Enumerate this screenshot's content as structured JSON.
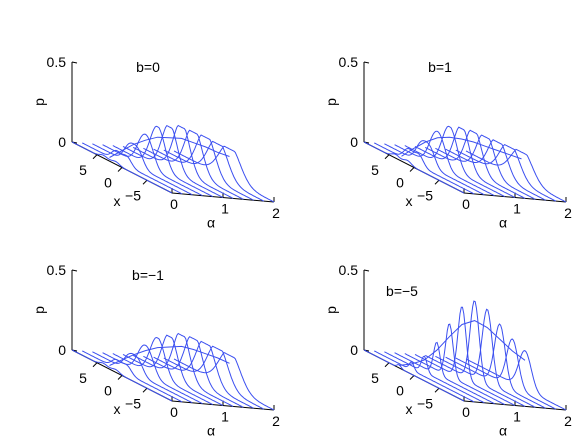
{
  "chart_data": [
    {
      "type": "line",
      "title": "b=0",
      "zlabel": "p",
      "xlabel": "α",
      "ylabel": "x",
      "alpha_ticks": [
        "0",
        "1",
        "2"
      ],
      "x_ticks": [
        "5",
        "0",
        "−5"
      ],
      "z_ticks": [
        "0",
        "0.5"
      ],
      "zlim": [
        0,
        0.5
      ],
      "alpha_values": [
        0,
        0.2,
        0.4,
        0.6,
        0.8,
        1.0,
        1.2,
        1.4,
        1.6,
        1.8,
        2.0
      ],
      "peak_p": [
        0.03,
        0.1,
        0.17,
        0.22,
        0.26,
        0.27,
        0.28,
        0.26,
        0.24,
        0.21,
        0.19
      ]
    },
    {
      "type": "line",
      "title": "b=1",
      "zlabel": "p",
      "xlabel": "α",
      "ylabel": "x",
      "alpha_ticks": [
        "0",
        "1",
        "2"
      ],
      "x_ticks": [
        "5",
        "0",
        "−5"
      ],
      "z_ticks": [
        "0",
        "0.5"
      ],
      "zlim": [
        0,
        0.5
      ],
      "alpha_values": [
        0,
        0.2,
        0.4,
        0.6,
        0.8,
        1.0,
        1.2,
        1.4,
        1.6,
        1.8,
        2.0
      ],
      "peak_p": [
        0.04,
        0.12,
        0.19,
        0.24,
        0.26,
        0.26,
        0.25,
        0.23,
        0.21,
        0.19,
        0.17
      ]
    },
    {
      "type": "line",
      "title": "b=−1",
      "zlabel": "p",
      "xlabel": "α",
      "ylabel": "x",
      "alpha_ticks": [
        "0",
        "1",
        "2"
      ],
      "x_ticks": [
        "5",
        "0",
        "−5"
      ],
      "z_ticks": [
        "0",
        "0.5"
      ],
      "zlim": [
        0,
        0.5
      ],
      "alpha_values": [
        0,
        0.2,
        0.4,
        0.6,
        0.8,
        1.0,
        1.2,
        1.4,
        1.6,
        1.8,
        2.0
      ],
      "peak_p": [
        0.03,
        0.09,
        0.15,
        0.2,
        0.24,
        0.26,
        0.28,
        0.27,
        0.25,
        0.23,
        0.2
      ]
    },
    {
      "type": "line",
      "title": "b=−5",
      "zlabel": "p",
      "xlabel": "α",
      "ylabel": "x",
      "alpha_ticks": [
        "0",
        "1",
        "2"
      ],
      "x_ticks": [
        "5",
        "0",
        "−5"
      ],
      "z_ticks": [
        "0",
        "0.5"
      ],
      "zlim": [
        0,
        0.5
      ],
      "alpha_values": [
        0,
        0.2,
        0.4,
        0.6,
        0.8,
        1.0,
        1.2,
        1.4,
        1.6,
        1.8,
        2.0
      ],
      "peak_p": [
        0.02,
        0.05,
        0.1,
        0.2,
        0.33,
        0.45,
        0.5,
        0.46,
        0.38,
        0.3,
        0.24
      ]
    }
  ],
  "colors": {
    "curve": "#3b4ff0",
    "axes": "#000000"
  }
}
